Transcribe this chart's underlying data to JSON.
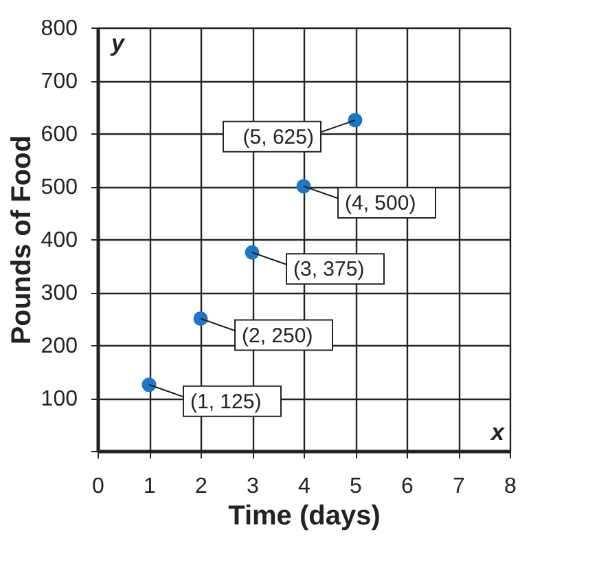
{
  "chart_data": {
    "type": "scatter",
    "xlabel": "Time (days)",
    "ylabel": "Pounds of Food",
    "x": [
      1,
      2,
      3,
      4,
      5
    ],
    "series": [
      {
        "color": "#1f77c4",
        "values": [
          125,
          250,
          375,
          500,
          625
        ]
      }
    ],
    "value_labels": [
      "(1, 125)",
      "(2, 250)",
      "(3, 375)",
      "(4, 500)",
      "(5, 625)"
    ],
    "annotations": [
      "y",
      "x"
    ],
    "xlim": [
      0,
      8
    ],
    "xticks": [
      0,
      1,
      2,
      3,
      4,
      5,
      6,
      7,
      8
    ],
    "ylim": [
      0,
      800
    ],
    "yticks": [
      {
        "value": 0,
        "label": null
      },
      100,
      200,
      300,
      400,
      500,
      600,
      700,
      800
    ],
    "grid": true,
    "marker": "circle"
  }
}
